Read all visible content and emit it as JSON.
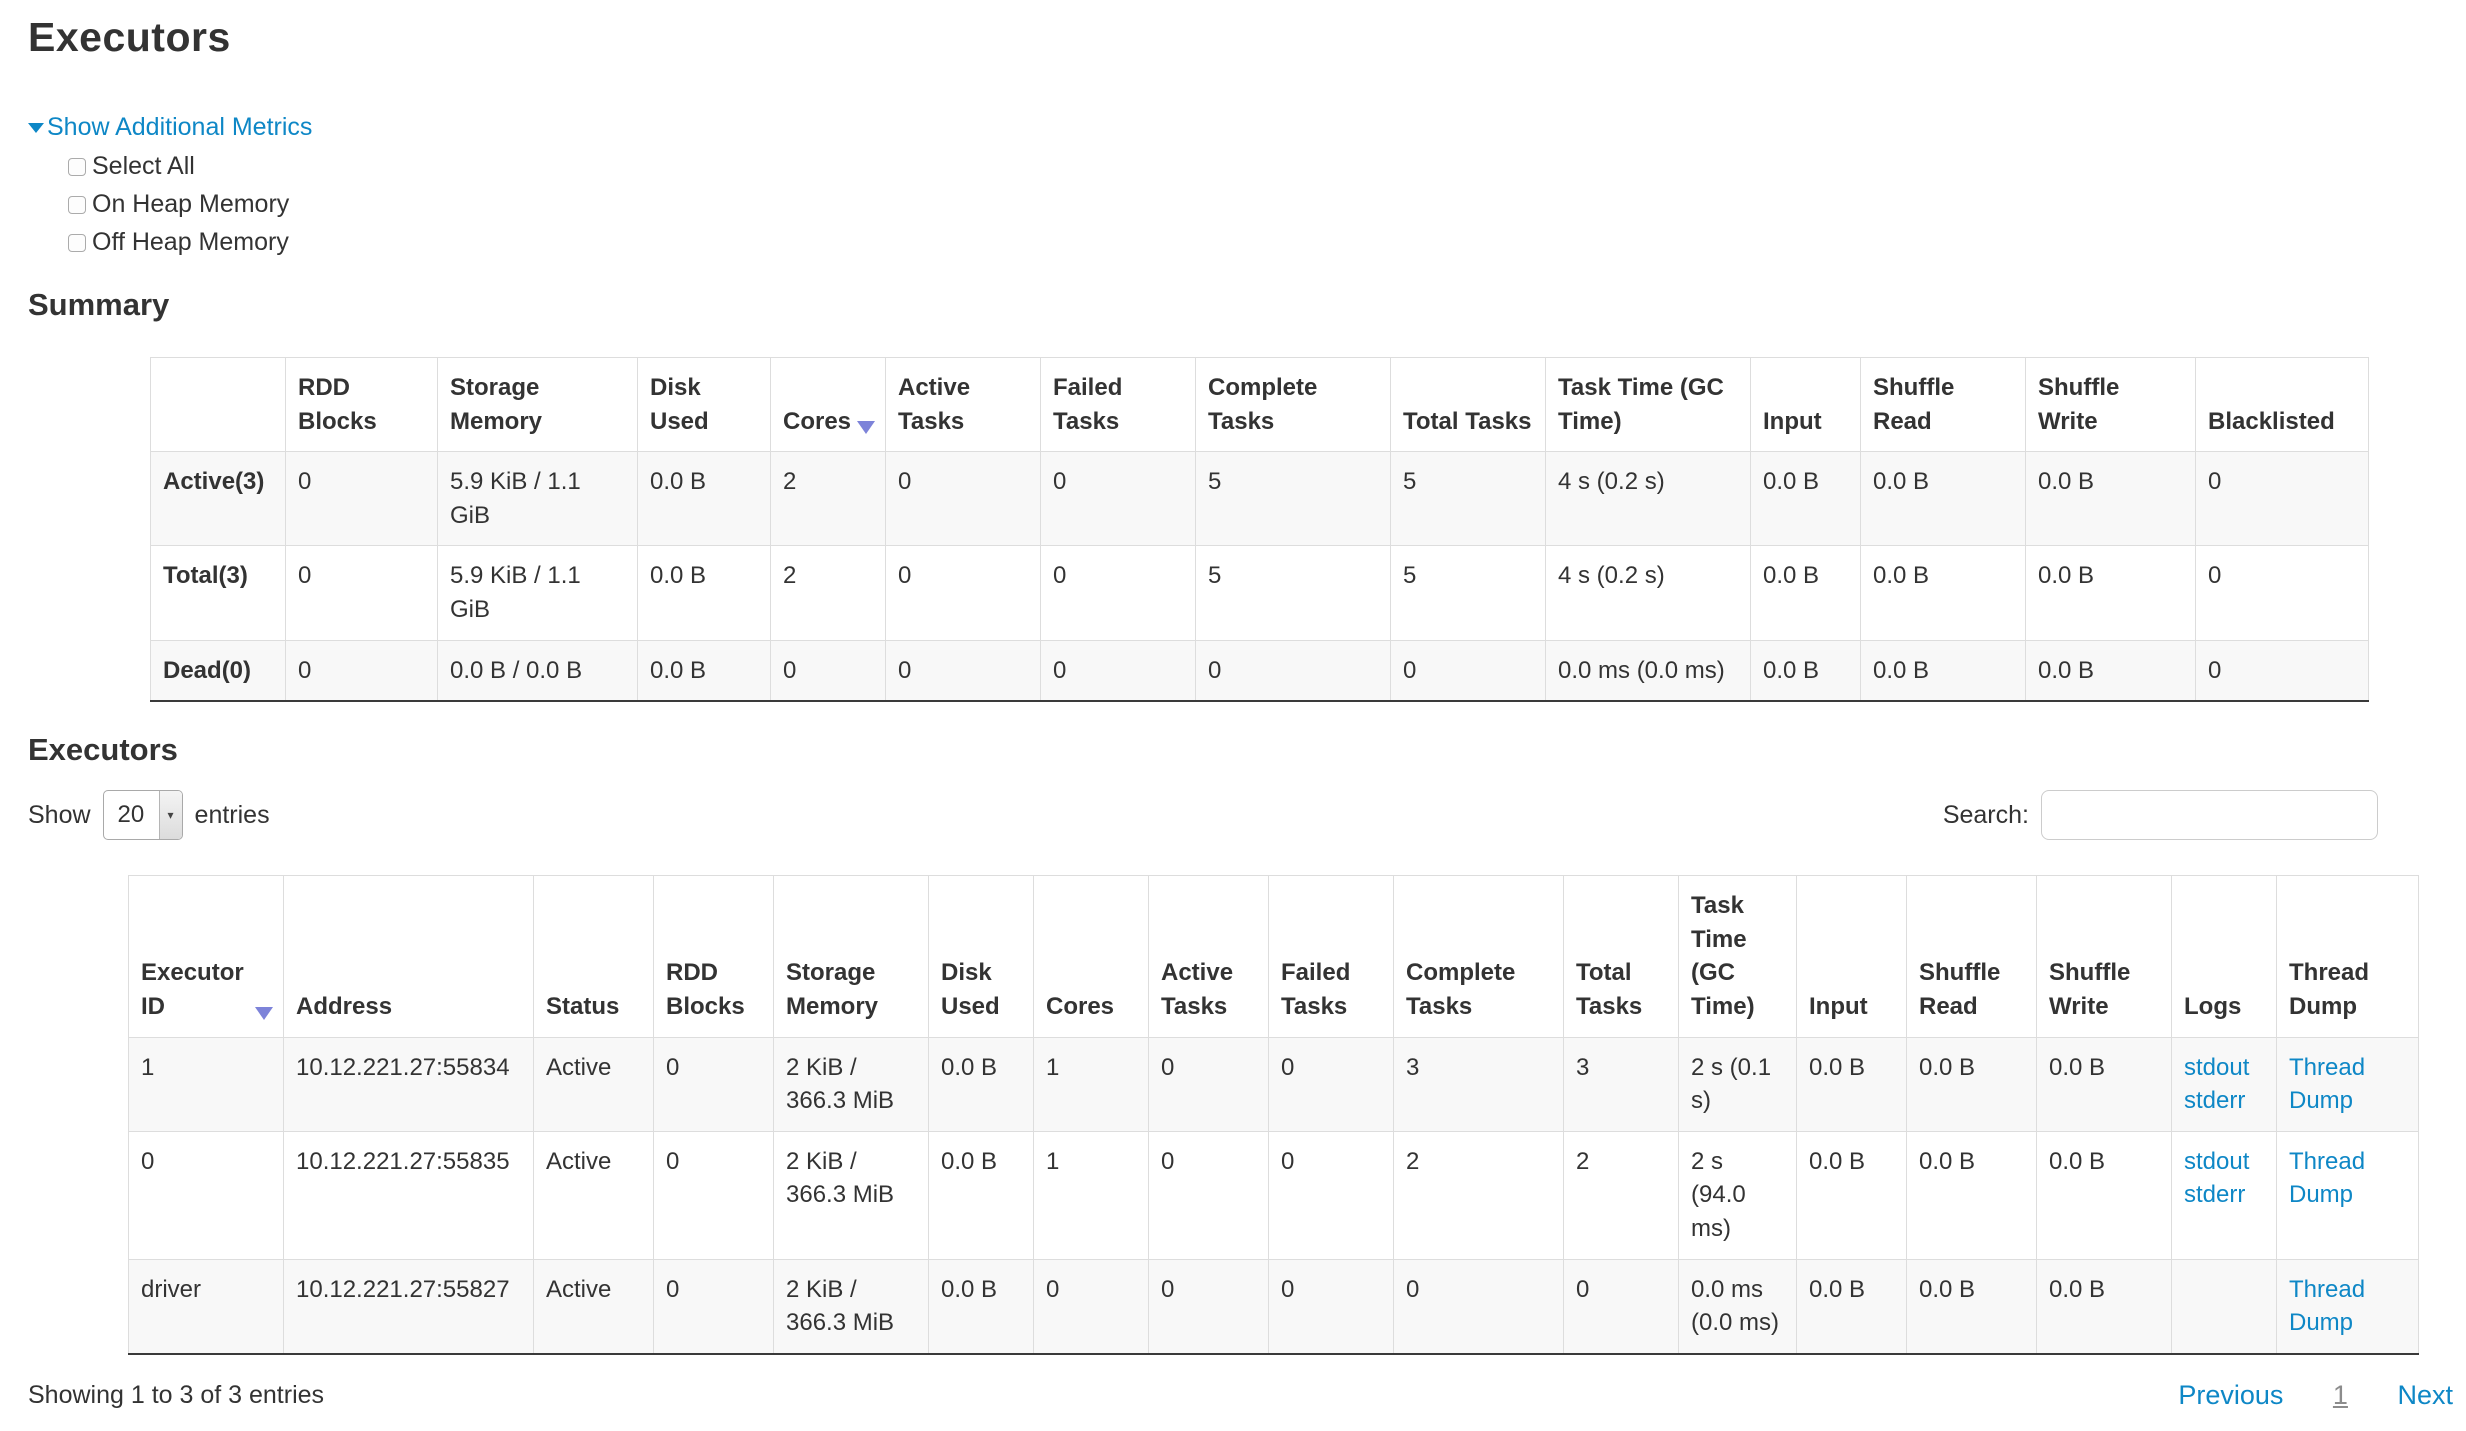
{
  "page": {
    "title": "Executors"
  },
  "metrics": {
    "toggle_label": "Show Additional Metrics",
    "options": [
      {
        "label": "Select All",
        "checked": false
      },
      {
        "label": "On Heap Memory",
        "checked": false
      },
      {
        "label": "Off Heap Memory",
        "checked": false
      }
    ]
  },
  "summary": {
    "heading": "Summary",
    "columns": [
      {
        "label": ""
      },
      {
        "label": "RDD Blocks"
      },
      {
        "label": "Storage Memory"
      },
      {
        "label": "Disk Used"
      },
      {
        "label": "Cores",
        "sorted": "desc"
      },
      {
        "label": "Active Tasks"
      },
      {
        "label": "Failed Tasks"
      },
      {
        "label": "Complete Tasks"
      },
      {
        "label": "Total Tasks"
      },
      {
        "label": "Task Time (GC Time)"
      },
      {
        "label": "Input"
      },
      {
        "label": "Shuffle Read"
      },
      {
        "label": "Shuffle Write"
      },
      {
        "label": "Blacklisted"
      }
    ],
    "rows": [
      {
        "label": "Active(3)",
        "cells": [
          "0",
          "5.9 KiB / 1.1 GiB",
          "0.0 B",
          "2",
          "0",
          "0",
          "5",
          "5",
          "4 s (0.2 s)",
          "0.0 B",
          "0.0 B",
          "0.0 B",
          "0"
        ]
      },
      {
        "label": "Total(3)",
        "cells": [
          "0",
          "5.9 KiB / 1.1 GiB",
          "0.0 B",
          "2",
          "0",
          "0",
          "5",
          "5",
          "4 s (0.2 s)",
          "0.0 B",
          "0.0 B",
          "0.0 B",
          "0"
        ]
      },
      {
        "label": "Dead(0)",
        "cells": [
          "0",
          "0.0 B / 0.0 B",
          "0.0 B",
          "0",
          "0",
          "0",
          "0",
          "0",
          "0.0 ms (0.0 ms)",
          "0.0 B",
          "0.0 B",
          "0.0 B",
          "0"
        ]
      }
    ]
  },
  "executors_table": {
    "heading": "Executors",
    "length_control": {
      "show_label": "Show",
      "selected": "20",
      "suffix": "entries"
    },
    "search": {
      "label": "Search:",
      "value": ""
    },
    "columns": [
      {
        "label": "Executor ID",
        "sorted": "desc"
      },
      {
        "label": "Address"
      },
      {
        "label": "Status"
      },
      {
        "label": "RDD Blocks"
      },
      {
        "label": "Storage Memory"
      },
      {
        "label": "Disk Used"
      },
      {
        "label": "Cores"
      },
      {
        "label": "Active Tasks"
      },
      {
        "label": "Failed Tasks"
      },
      {
        "label": "Complete Tasks"
      },
      {
        "label": "Total Tasks"
      },
      {
        "label": "Task Time (GC Time)"
      },
      {
        "label": "Input"
      },
      {
        "label": "Shuffle Read"
      },
      {
        "label": "Shuffle Write"
      },
      {
        "label": "Logs"
      },
      {
        "label": "Thread Dump"
      }
    ],
    "rows": [
      {
        "cells": [
          "1",
          "10.12.221.27:55834",
          "Active",
          "0",
          "2 KiB / 366.3 MiB",
          "0.0 B",
          "1",
          "0",
          "0",
          "3",
          "3",
          "2 s (0.1 s)",
          "0.0 B",
          "0.0 B",
          "0.0 B",
          {
            "links": [
              "stdout",
              "stderr"
            ]
          },
          {
            "links": [
              "Thread Dump"
            ]
          }
        ]
      },
      {
        "cells": [
          "0",
          "10.12.221.27:55835",
          "Active",
          "0",
          "2 KiB / 366.3 MiB",
          "0.0 B",
          "1",
          "0",
          "0",
          "2",
          "2",
          "2 s (94.0 ms)",
          "0.0 B",
          "0.0 B",
          "0.0 B",
          {
            "links": [
              "stdout",
              "stderr"
            ]
          },
          {
            "links": [
              "Thread Dump"
            ]
          }
        ]
      },
      {
        "cells": [
          "driver",
          "10.12.221.27:55827",
          "Active",
          "0",
          "2 KiB / 366.3 MiB",
          "0.0 B",
          "0",
          "0",
          "0",
          "0",
          "0",
          "0.0 ms (0.0 ms)",
          "0.0 B",
          "0.0 B",
          "0.0 B",
          {
            "links": []
          },
          {
            "links": [
              "Thread Dump"
            ]
          }
        ]
      }
    ],
    "footer": {
      "info": "Showing 1 to 3 of 3 entries",
      "previous": "Previous",
      "page": "1",
      "next": "Next"
    }
  },
  "colors": {
    "link": "#0e87c6",
    "sort_arrow": "#7d83d9",
    "stripe": "#f8f8f8"
  }
}
